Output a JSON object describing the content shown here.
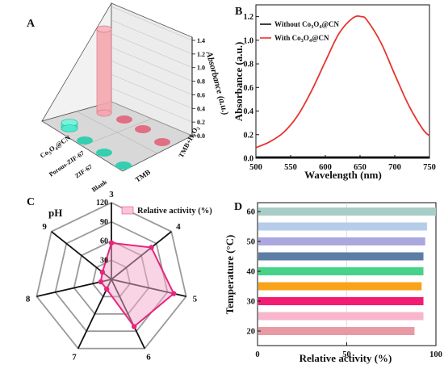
{
  "chart_data": [
    {
      "panel": "A",
      "type": "bar",
      "zlabel": "Absorbance (a.u.)",
      "zlim": [
        0.0,
        1.4
      ],
      "z_ticks": [
        "0.0",
        "0.2",
        "0.4",
        "0.6",
        "0.8",
        "1.0",
        "1.2",
        "1.4"
      ],
      "rows": [
        "Co3O4@CN",
        "Porous-ZIF-67",
        "ZIF-67",
        "Blank"
      ],
      "columns": [
        "TMB",
        "TMB+H2O2"
      ],
      "values": [
        [
          0.06,
          1.28
        ],
        [
          0.0,
          0.0
        ],
        [
          0.0,
          0.0
        ],
        [
          0.0,
          0.0
        ]
      ],
      "colors": {
        "TMB": "#2fd9b8",
        "TMB+H2O2": "#f28f9c"
      }
    },
    {
      "panel": "B",
      "type": "line",
      "xlabel": "Wavelength (nm)",
      "ylabel": "Absorbance (a.u.)",
      "xlim": [
        500,
        750
      ],
      "ylim": [
        0.0,
        1.3
      ],
      "x_ticks": [
        500,
        550,
        600,
        650,
        700,
        750
      ],
      "y_ticks": [
        "0.0",
        "0.2",
        "0.4",
        "0.6",
        "0.8",
        "1.0",
        "1.2"
      ],
      "legend": "top-left",
      "series": [
        {
          "name": "Without Co3O4@CN",
          "color": "#111111",
          "x": [
            500,
            750
          ],
          "y": [
            0.01,
            0.01
          ]
        },
        {
          "name": "With Co3O4@CN",
          "color": "#e8332f",
          "x": [
            500,
            520,
            540,
            560,
            580,
            600,
            620,
            640,
            652,
            660,
            680,
            700,
            720,
            740,
            750
          ],
          "y": [
            0.09,
            0.14,
            0.22,
            0.36,
            0.57,
            0.82,
            1.06,
            1.19,
            1.2,
            1.17,
            0.98,
            0.71,
            0.45,
            0.25,
            0.19
          ]
        }
      ]
    },
    {
      "panel": "C",
      "type": "radar",
      "axis_title": "pH",
      "categories": [
        "3",
        "4",
        "5",
        "6",
        "7",
        "8",
        "9"
      ],
      "r_ticks": [
        "30",
        "60",
        "90",
        "120"
      ],
      "rmax": 120,
      "series": [
        {
          "name": "Relative activity (%)",
          "values": [
            57,
            80,
            100,
            82,
            17,
            17,
            18
          ],
          "color": "#e8257d"
        }
      ]
    },
    {
      "panel": "D",
      "type": "bar",
      "orientation": "horizontal",
      "xlabel": "Relative activity (%)",
      "ylabel": "Temperature (°C)",
      "xlim": [
        0,
        100
      ],
      "x_ticks": [
        0,
        50,
        100
      ],
      "categories": [
        "20",
        "25",
        "30",
        "35",
        "40",
        "45",
        "50",
        "55",
        "60"
      ],
      "y_tick_labels": [
        "20",
        "30",
        "40",
        "50",
        "60"
      ],
      "values": [
        88,
        93,
        93,
        92,
        93,
        93,
        94,
        95,
        100
      ],
      "colors": [
        "#e89aa4",
        "#f7b6cc",
        "#f21c73",
        "#f9a31b",
        "#47d28a",
        "#5b7da6",
        "#ada7df",
        "#b6cdea",
        "#a8cdc7"
      ]
    }
  ]
}
